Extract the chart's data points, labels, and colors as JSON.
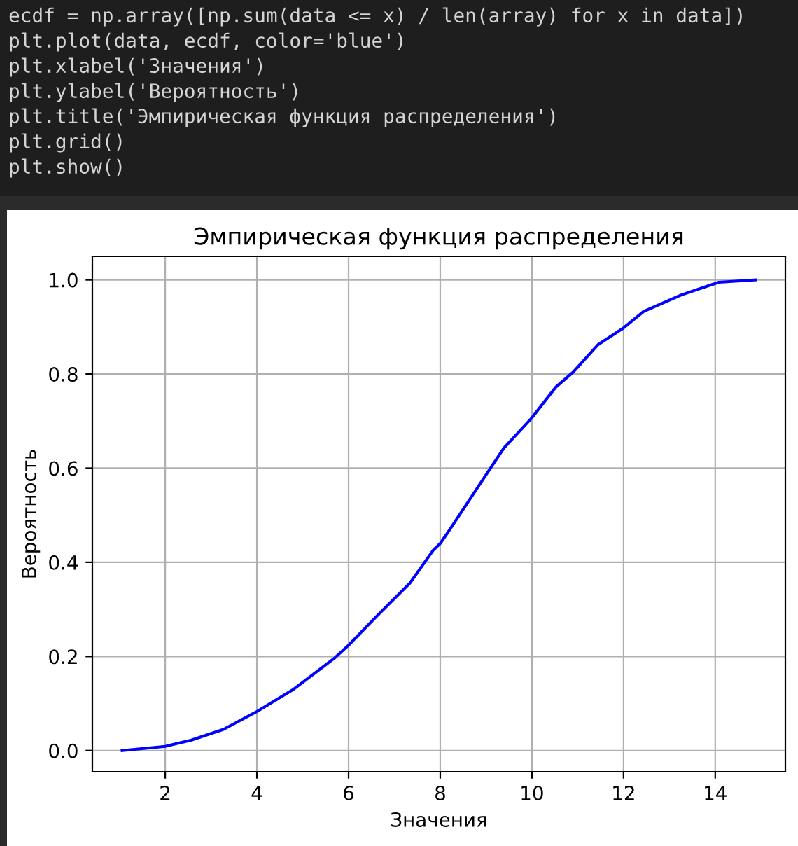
{
  "chart_data": {
    "type": "line",
    "title": "Эмпирическая функция распределения",
    "xlabel": "Значения",
    "ylabel": "Вероятность",
    "x": [
      1.06,
      2,
      2.56,
      3.27,
      4,
      4.78,
      5.7,
      6,
      6.63,
      7.34,
      7.85,
      8,
      8.17,
      8.98,
      9.39,
      10,
      10.52,
      10.9,
      11.44,
      12,
      12.44,
      13.26,
      14.08,
      14.88
    ],
    "series": [
      {
        "color": "#0000ff",
        "values": [
          0.0,
          0.009,
          0.022,
          0.045,
          0.083,
          0.129,
          0.197,
          0.224,
          0.287,
          0.356,
          0.426,
          0.44,
          0.464,
          0.583,
          0.643,
          0.707,
          0.772,
          0.804,
          0.862,
          0.898,
          0.933,
          0.968,
          0.995,
          1.0
        ]
      }
    ],
    "xlim": [
      0.41,
      15.53
    ],
    "ylim": [
      -0.045,
      1.05
    ],
    "xticks": [
      2,
      4,
      6,
      8,
      10,
      12,
      14
    ],
    "yticks": [
      {
        "value": 0,
        "label": "0.0"
      },
      {
        "value": 0.2,
        "label": "0.2"
      },
      {
        "value": 0.4,
        "label": "0.4"
      },
      {
        "value": 0.6,
        "label": "0.6"
      },
      {
        "value": 0.8,
        "label": "0.8"
      },
      {
        "value": 1.0,
        "label": "1.0"
      }
    ],
    "grid": true,
    "marker": "none",
    "line_style": "solid",
    "annotations": [
      "ecdf = np.array([np.sum(data <= x) / len(array) for x in data])",
      "plt.plot(data, ecdf, color='blue')",
      "plt.xlabel('Значения')",
      "plt.ylabel('Вероятность')",
      "plt.title('Эмпирическая функция распределения')",
      "plt.grid()",
      "plt.show()"
    ]
  }
}
